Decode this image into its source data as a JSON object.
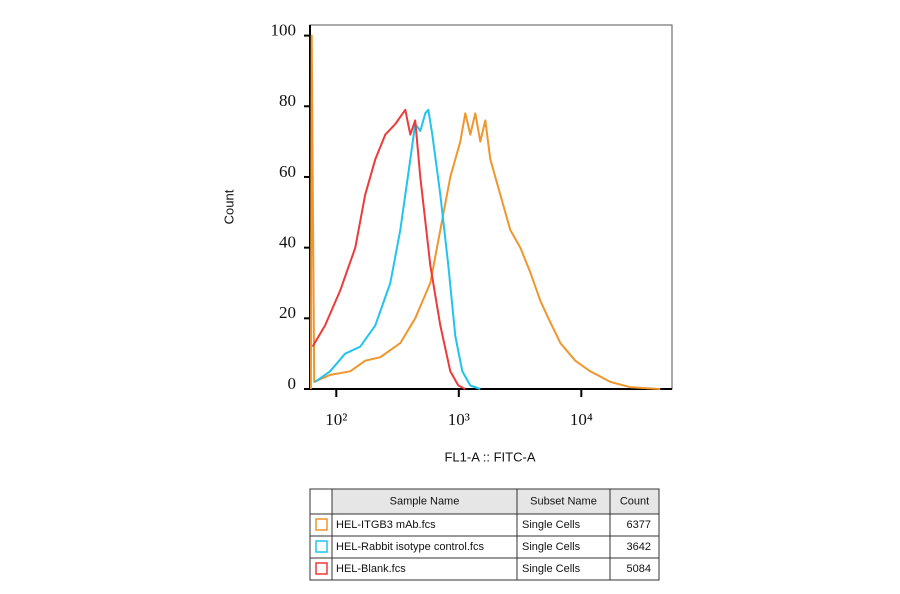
{
  "chart_data": {
    "type": "line",
    "x_label": "FL1-A :: FITC-A",
    "y_label": "Count",
    "xscale": "log",
    "xlim": [
      61,
      55000
    ],
    "ylim": [
      0,
      103
    ],
    "xticks": [
      {
        "value": 100,
        "label": "10²"
      },
      {
        "value": 1000,
        "label": "10³"
      },
      {
        "value": 10000,
        "label": "10⁴"
      }
    ],
    "yticks": [
      0,
      20,
      40,
      60,
      80,
      100
    ],
    "legend_columns": [
      "Sample Name",
      "Subset Name",
      "Count"
    ],
    "series": [
      {
        "name": "HEL-ITGB3 mAb.fcs",
        "subset": "Single Cells",
        "count": 6377,
        "color": "#f0962e",
        "x": [
          62,
          63,
          66,
          89,
          130,
          172,
          229,
          333,
          441,
          585,
          706,
          853,
          1029,
          1130,
          1242,
          1364,
          1499,
          1645,
          1807,
          2183,
          2632,
          3177,
          3837,
          4624,
          5383,
          6745,
          8933,
          11830,
          17260,
          25120,
          44160
        ],
        "values": [
          0,
          100,
          2,
          4,
          5,
          8,
          9,
          13,
          20,
          30,
          45,
          60,
          70,
          78,
          72,
          78,
          70,
          76,
          65,
          55,
          45,
          40,
          33,
          25,
          20,
          13,
          8,
          5,
          2,
          0.5,
          0
        ]
      },
      {
        "name": "HEL-Rabbit isotype control.fcs",
        "subset": "Single Cells",
        "count": 3642,
        "color": "#22c3ee",
        "x": [
          67,
          89,
          118,
          157,
          208,
          276,
          333,
          402,
          441,
          485,
          533,
          564,
          608,
          706,
          821,
          936,
          1068,
          1242,
          1499
        ],
        "values": [
          2,
          5,
          10,
          12,
          18,
          30,
          45,
          65,
          75,
          73,
          78,
          79,
          72,
          55,
          35,
          15,
          5,
          1,
          0
        ]
      },
      {
        "name": "HEL-Blank.fcs",
        "subset": "Single Cells",
        "count": 5084,
        "color": "#ee3a3a",
        "x": [
          64,
          81,
          108,
          143,
          172,
          208,
          251,
          303,
          366,
          402,
          441,
          485,
          585,
          706,
          853,
          991,
          1130
        ],
        "values": [
          12,
          18,
          28,
          40,
          55,
          65,
          72,
          75,
          79,
          72,
          76,
          60,
          35,
          18,
          5,
          1,
          0
        ]
      }
    ]
  }
}
